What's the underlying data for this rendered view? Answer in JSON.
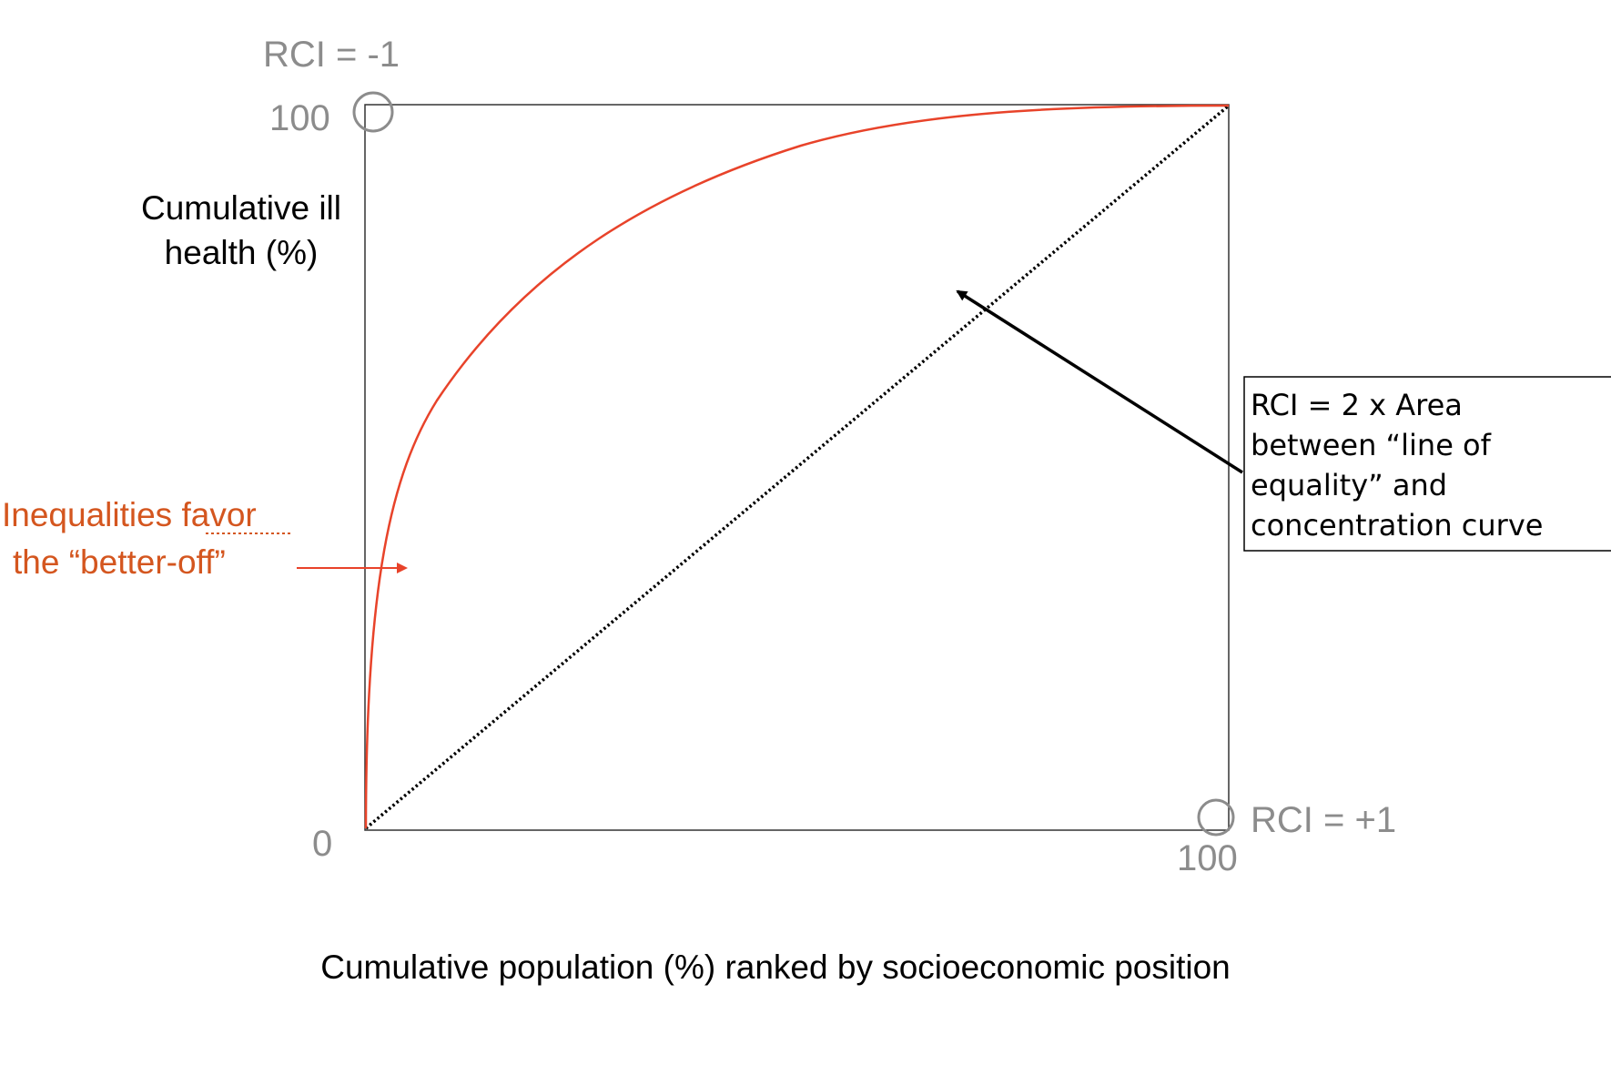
{
  "labels": {
    "rci_top": "RCI = -1",
    "y_max": "100",
    "y_title_line1": "Cumulative ill",
    "y_title_line2": "health (%)",
    "origin": "0",
    "x_max": "100",
    "rci_bottom": "RCI = +1",
    "x_title": "Cumulative population (%) ranked by socioeconomic position",
    "favor_line1_start": "Inequalities ",
    "favor_line1_end": "favor",
    "favor_line2": "the “better-off”",
    "box_line1": "RCI = 2 x Area",
    "box_line2": "between “line of",
    "box_line3": "equality” and",
    "box_line4": "concentration curve"
  },
  "colors": {
    "curve": "#e8432a",
    "favor_text": "#d4561f",
    "equality_line": "#000000",
    "marker": "#8c8c8c"
  }
}
